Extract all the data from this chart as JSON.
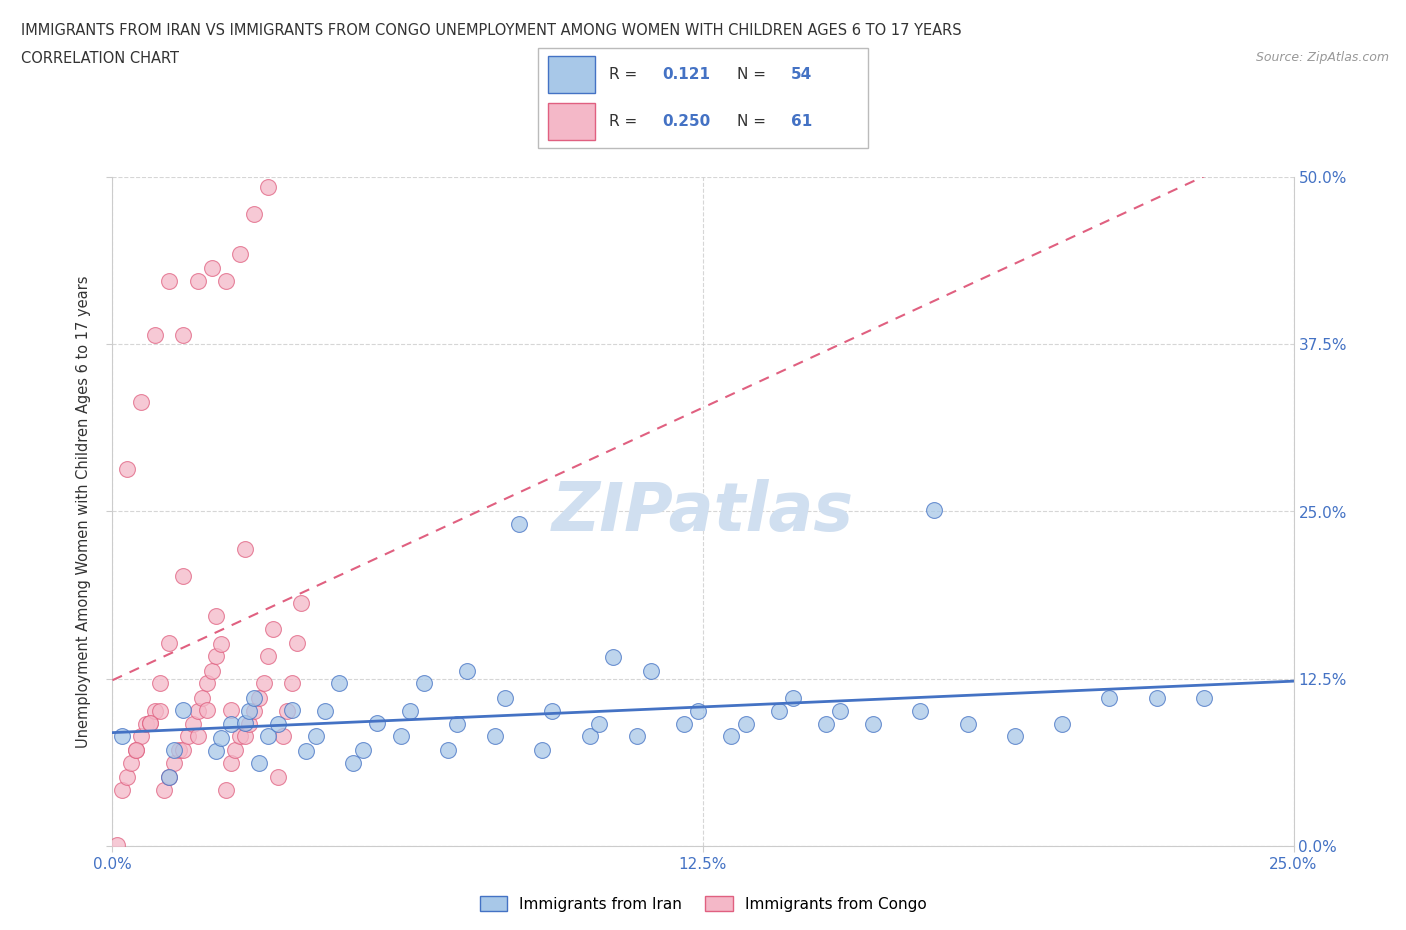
{
  "title_line1": "IMMIGRANTS FROM IRAN VS IMMIGRANTS FROM CONGO UNEMPLOYMENT AMONG WOMEN WITH CHILDREN AGES 6 TO 17 YEARS",
  "title_line2": "CORRELATION CHART",
  "source_text": "Source: ZipAtlas.com",
  "ylabel": "Unemployment Among Women with Children Ages 6 to 17 years",
  "xlim": [
    0.0,
    0.25
  ],
  "ylim": [
    0.0,
    0.5
  ],
  "xtick_vals": [
    0.0,
    0.125,
    0.25
  ],
  "ytick_vals": [
    0.0,
    0.125,
    0.25,
    0.375,
    0.5
  ],
  "iran_fill_color": "#a8c8e8",
  "congo_fill_color": "#f4b8c8",
  "iran_edge_color": "#4472c4",
  "congo_edge_color": "#e06080",
  "iran_line_color": "#4472c4",
  "congo_line_color": "#e06080",
  "watermark_color": "#d0dff0",
  "R_iran": 0.121,
  "N_iran": 54,
  "R_congo": 0.25,
  "N_congo": 61,
  "legend_label_iran": "Immigrants from Iran",
  "legend_label_congo": "Immigrants from Congo",
  "iran_scatter_x": [
    0.002,
    0.012,
    0.013,
    0.015,
    0.022,
    0.023,
    0.025,
    0.028,
    0.029,
    0.03,
    0.031,
    0.033,
    0.035,
    0.038,
    0.041,
    0.043,
    0.045,
    0.048,
    0.051,
    0.053,
    0.056,
    0.061,
    0.063,
    0.066,
    0.071,
    0.073,
    0.075,
    0.081,
    0.083,
    0.086,
    0.091,
    0.093,
    0.101,
    0.103,
    0.106,
    0.111,
    0.114,
    0.121,
    0.124,
    0.131,
    0.134,
    0.141,
    0.144,
    0.151,
    0.154,
    0.161,
    0.171,
    0.174,
    0.181,
    0.191,
    0.201,
    0.211,
    0.221,
    0.231
  ],
  "iran_scatter_y": [
    0.082,
    0.052,
    0.072,
    0.102,
    0.071,
    0.081,
    0.091,
    0.092,
    0.101,
    0.111,
    0.062,
    0.082,
    0.091,
    0.102,
    0.071,
    0.082,
    0.101,
    0.122,
    0.062,
    0.072,
    0.092,
    0.082,
    0.101,
    0.122,
    0.072,
    0.091,
    0.131,
    0.082,
    0.111,
    0.241,
    0.072,
    0.101,
    0.082,
    0.091,
    0.141,
    0.082,
    0.131,
    0.091,
    0.101,
    0.082,
    0.091,
    0.101,
    0.111,
    0.091,
    0.101,
    0.091,
    0.101,
    0.251,
    0.091,
    0.082,
    0.091,
    0.111,
    0.111,
    0.111
  ],
  "congo_scatter_x": [
    0.001,
    0.002,
    0.003,
    0.004,
    0.005,
    0.006,
    0.007,
    0.008,
    0.009,
    0.01,
    0.011,
    0.012,
    0.013,
    0.014,
    0.015,
    0.016,
    0.017,
    0.018,
    0.019,
    0.02,
    0.021,
    0.022,
    0.023,
    0.024,
    0.025,
    0.026,
    0.027,
    0.028,
    0.029,
    0.03,
    0.031,
    0.032,
    0.033,
    0.034,
    0.035,
    0.036,
    0.037,
    0.038,
    0.039,
    0.04,
    0.005,
    0.008,
    0.01,
    0.012,
    0.015,
    0.018,
    0.02,
    0.022,
    0.025,
    0.028,
    0.003,
    0.006,
    0.009,
    0.012,
    0.015,
    0.018,
    0.021,
    0.024,
    0.027,
    0.03,
    0.033
  ],
  "congo_scatter_y": [
    0.001,
    0.042,
    0.052,
    0.062,
    0.072,
    0.082,
    0.091,
    0.092,
    0.101,
    0.101,
    0.042,
    0.052,
    0.062,
    0.072,
    0.072,
    0.082,
    0.091,
    0.101,
    0.111,
    0.122,
    0.131,
    0.142,
    0.151,
    0.042,
    0.062,
    0.072,
    0.082,
    0.082,
    0.091,
    0.101,
    0.111,
    0.122,
    0.142,
    0.162,
    0.052,
    0.082,
    0.101,
    0.122,
    0.152,
    0.182,
    0.072,
    0.092,
    0.122,
    0.152,
    0.202,
    0.082,
    0.102,
    0.172,
    0.102,
    0.222,
    0.282,
    0.332,
    0.382,
    0.422,
    0.382,
    0.422,
    0.432,
    0.422,
    0.442,
    0.472,
    0.492
  ]
}
